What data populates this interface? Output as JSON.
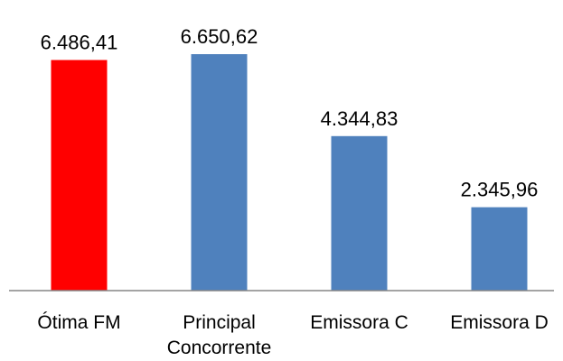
{
  "chart_data": {
    "type": "bar",
    "title": "",
    "xlabel": "",
    "ylabel": "",
    "categories": [
      [
        "Ótima FM"
      ],
      [
        "Principal",
        "Concorrente"
      ],
      [
        "Emissora C"
      ],
      [
        "Emissora D"
      ]
    ],
    "values": [
      6486.41,
      6650.62,
      4344.83,
      2345.96
    ],
    "value_labels": [
      "6.486,41",
      "6.650,62",
      "4.344,83",
      "2.345,96"
    ],
    "colors": [
      "#ff0000",
      "#4f81bd",
      "#4f81bd",
      "#4f81bd"
    ],
    "axis_color": "#868686",
    "ylim": [
      0,
      6650.62
    ],
    "grid": false,
    "legend": "none"
  }
}
